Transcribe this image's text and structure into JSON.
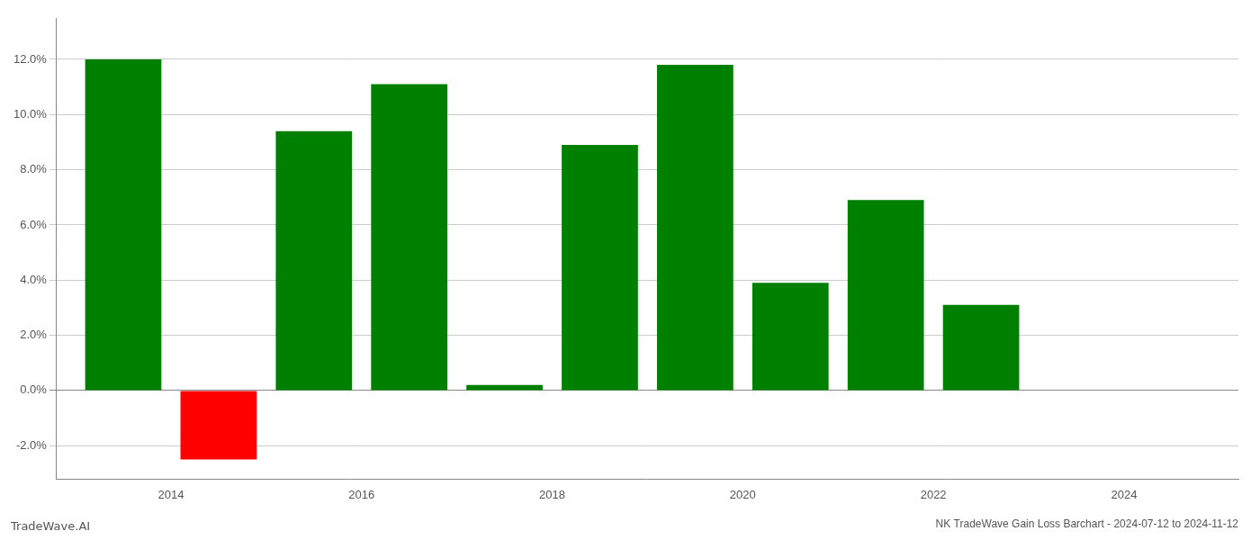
{
  "chart_data": {
    "type": "bar",
    "title": "NK TradeWave Gain Loss Barchart - 2024-07-12 to 2024-11-12",
    "annotations": [
      "TradeWave.AI"
    ],
    "x": [
      2013.5,
      2014.5,
      2015.5,
      2016.5,
      2017.5,
      2018.5,
      2019.5,
      2020.5,
      2021.5,
      2022.5
    ],
    "values": [
      0.12,
      -0.025,
      0.094,
      0.111,
      0.002,
      0.089,
      0.118,
      0.039,
      0.069,
      0.031
    ],
    "colors": [
      "#008000",
      "#ff0000",
      "#008000",
      "#008000",
      "#008000",
      "#008000",
      "#008000",
      "#008000",
      "#008000",
      "#008000"
    ],
    "xlim": [
      2012.8,
      2025.2
    ],
    "xticks": [
      2014,
      2016,
      2018,
      2020,
      2022,
      2024
    ],
    "ylim": [
      -0.032,
      0.135
    ],
    "yticks": [
      {
        "value": -0.02,
        "label": "-2.0%"
      },
      {
        "value": 0.0,
        "label": "0.0%"
      },
      {
        "value": 0.02,
        "label": "2.0%"
      },
      {
        "value": 0.04,
        "label": "4.0%"
      },
      {
        "value": 0.06,
        "label": "6.0%"
      },
      {
        "value": 0.08,
        "label": "8.0%"
      },
      {
        "value": 0.1,
        "label": "10.0%"
      },
      {
        "value": 0.12,
        "label": "12.0%"
      }
    ],
    "grid": "y"
  }
}
